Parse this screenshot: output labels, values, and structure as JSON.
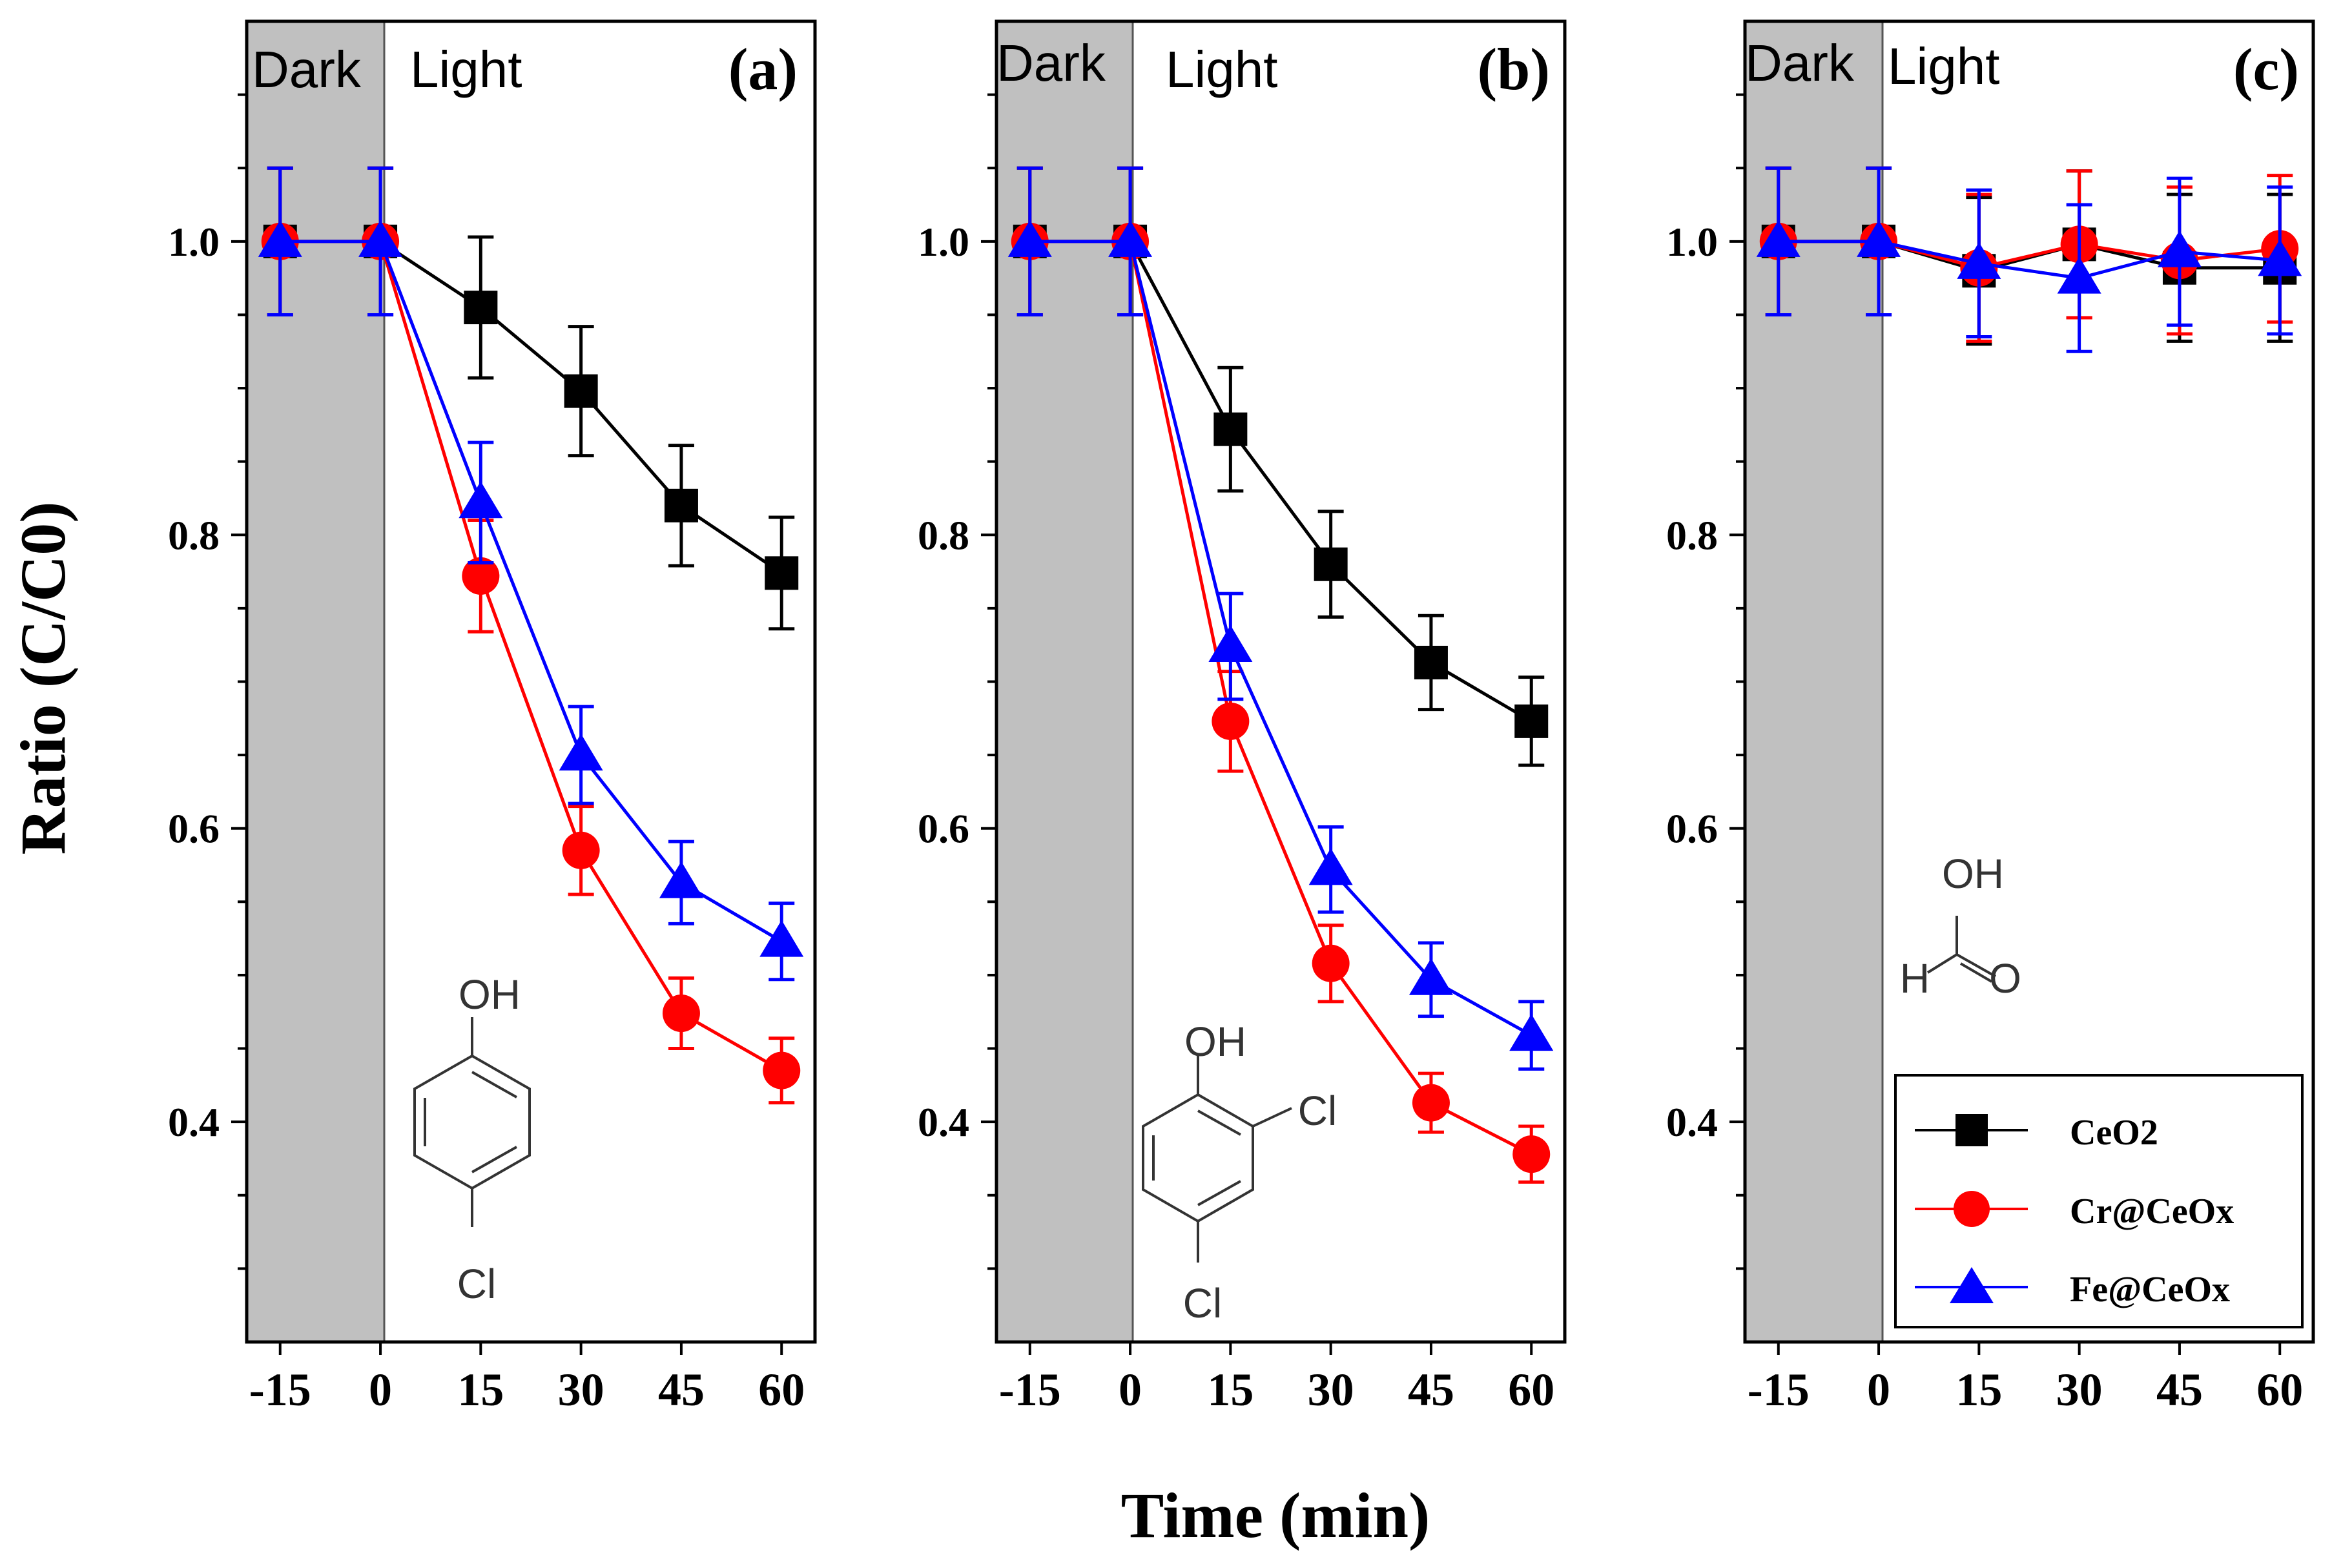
{
  "figure": {
    "ylabel": "Ratio (C/C0)",
    "xlabel": "Time (min)"
  },
  "colors": {
    "CeO2": "#000000",
    "Cr@CeOx": "#ff0000",
    "Fe@CeOx": "#0000ff",
    "dark_region": "#c0c0c0"
  },
  "legend": {
    "entries": [
      {
        "label": "CeO2",
        "marker": "square",
        "color": "#000000"
      },
      {
        "label": "Cr@CeOx",
        "marker": "circle",
        "color": "#ff0000"
      },
      {
        "label": "Fe@CeOx",
        "marker": "triangle",
        "color": "#0000ff"
      }
    ]
  },
  "chart_data": [
    {
      "type": "line",
      "panel": "(a)",
      "region_labels": {
        "dark": "Dark",
        "light": "Light"
      },
      "molecule": {
        "name": "4-chlorophenol",
        "labels": [
          "OH",
          "Cl"
        ]
      },
      "x": [
        -15,
        0,
        15,
        30,
        45,
        60
      ],
      "xticks": [
        "-15",
        "0",
        "15",
        "30",
        "45",
        "60"
      ],
      "yticks": [
        "0.4",
        "0.6",
        "0.8",
        "1.0"
      ],
      "xlim": [
        -20,
        65
      ],
      "ylim": [
        0.25,
        1.15
      ],
      "dark_range": [
        -20,
        0
      ],
      "xlabel": "Time (min)",
      "ylabel": "Ratio (C/C0)",
      "series": [
        {
          "name": "CeO2",
          "values": [
            1.0,
            1.0,
            0.955,
            0.898,
            0.82,
            0.774
          ],
          "errors": [
            0.05,
            0.05,
            0.048,
            0.044,
            0.041,
            0.038
          ]
        },
        {
          "name": "Cr@CeOx",
          "values": [
            1.0,
            1.0,
            0.772,
            0.585,
            0.474,
            0.435
          ],
          "errors": [
            0.05,
            0.05,
            0.038,
            0.03,
            0.024,
            0.022
          ]
        },
        {
          "name": "Fe@CeOx",
          "values": [
            1.0,
            1.0,
            0.822,
            0.65,
            0.563,
            0.523
          ],
          "errors": [
            0.05,
            0.05,
            0.041,
            0.033,
            0.028,
            0.026
          ]
        }
      ]
    },
    {
      "type": "line",
      "panel": "(b)",
      "region_labels": {
        "dark": "Dark",
        "light": "Light"
      },
      "molecule": {
        "name": "2,4-dichlorophenol",
        "labels": [
          "OH",
          "Cl",
          "Cl"
        ]
      },
      "x": [
        -15,
        0,
        15,
        30,
        45,
        60
      ],
      "xticks": [
        "-15",
        "0",
        "15",
        "30",
        "45",
        "60"
      ],
      "yticks": [
        "0.4",
        "0.6",
        "0.8",
        "1.0"
      ],
      "xlim": [
        -20,
        65
      ],
      "ylim": [
        0.25,
        1.15
      ],
      "dark_range": [
        -20,
        0
      ],
      "xlabel": "Time (min)",
      "ylabel": "Ratio (C/C0)",
      "series": [
        {
          "name": "CeO2",
          "values": [
            1.0,
            1.0,
            0.872,
            0.78,
            0.713,
            0.673
          ],
          "errors": [
            0.05,
            0.05,
            0.042,
            0.036,
            0.032,
            0.03
          ]
        },
        {
          "name": "Cr@CeOx",
          "values": [
            1.0,
            1.0,
            0.673,
            0.508,
            0.413,
            0.378
          ],
          "errors": [
            0.05,
            0.05,
            0.034,
            0.026,
            0.02,
            0.019
          ]
        },
        {
          "name": "Fe@CeOx",
          "values": [
            1.0,
            1.0,
            0.724,
            0.572,
            0.497,
            0.459
          ],
          "errors": [
            0.05,
            0.05,
            0.036,
            0.029,
            0.025,
            0.023
          ]
        }
      ]
    },
    {
      "type": "line",
      "panel": "(c)",
      "region_labels": {
        "dark": "Dark",
        "light": "Light"
      },
      "molecule": {
        "name": "formic acid",
        "labels": [
          "OH",
          "H",
          "O"
        ]
      },
      "x": [
        -15,
        0,
        15,
        30,
        45,
        60
      ],
      "xticks": [
        "-15",
        "0",
        "15",
        "30",
        "45",
        "60"
      ],
      "yticks": [
        "0.4",
        "0.6",
        "0.8",
        "1.0"
      ],
      "xlim": [
        -20,
        65
      ],
      "ylim": [
        0.25,
        1.15
      ],
      "dark_range": [
        -20,
        0
      ],
      "xlabel": "Time (min)",
      "ylabel": "Ratio (C/C0)",
      "legend_position": "bottom-right",
      "series": [
        {
          "name": "CeO2",
          "values": [
            1.0,
            1.0,
            0.98,
            0.998,
            0.982,
            0.982
          ],
          "errors": [
            0.05,
            0.05,
            0.05,
            0.05,
            0.05,
            0.05
          ]
        },
        {
          "name": "Cr@CeOx",
          "values": [
            1.0,
            1.0,
            0.982,
            0.998,
            0.987,
            0.995
          ],
          "errors": [
            0.05,
            0.05,
            0.05,
            0.05,
            0.05,
            0.05
          ]
        },
        {
          "name": "Fe@CeOx",
          "values": [
            1.0,
            1.0,
            0.985,
            0.975,
            0.993,
            0.987
          ],
          "errors": [
            0.05,
            0.05,
            0.05,
            0.05,
            0.05,
            0.05
          ]
        }
      ]
    }
  ]
}
